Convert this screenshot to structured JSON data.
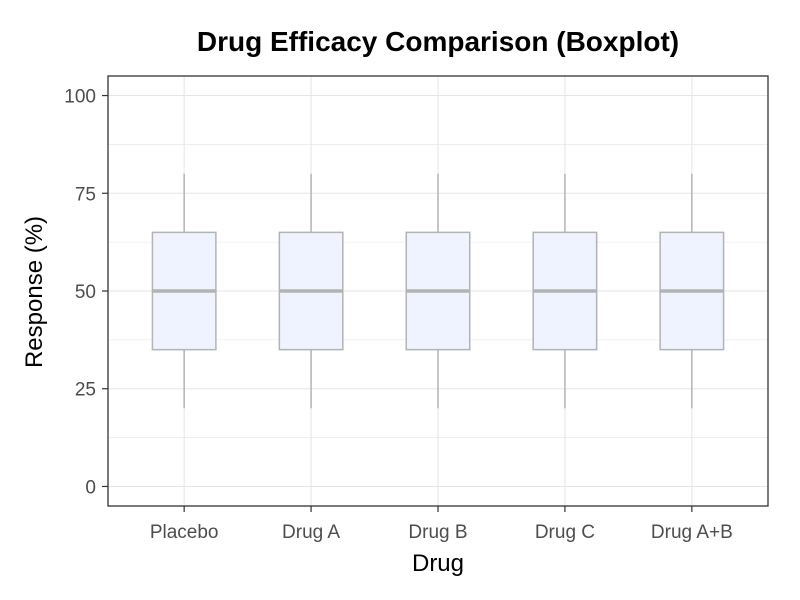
{
  "chart_data": {
    "type": "boxplot",
    "title": "Drug Efficacy Comparison (Boxplot)",
    "xlabel": "Drug",
    "ylabel": "Response (%)",
    "categories": [
      "Placebo",
      "Drug A",
      "Drug B",
      "Drug C",
      "Drug A+B"
    ],
    "boxes": [
      {
        "category": "Placebo",
        "min": 20,
        "q1": 35,
        "median": 50,
        "q3": 65,
        "max": 80
      },
      {
        "category": "Drug A",
        "min": 20,
        "q1": 35,
        "median": 50,
        "q3": 65,
        "max": 80
      },
      {
        "category": "Drug B",
        "min": 20,
        "q1": 35,
        "median": 50,
        "q3": 65,
        "max": 80
      },
      {
        "category": "Drug C",
        "min": 20,
        "q1": 35,
        "median": 50,
        "q3": 65,
        "max": 80
      },
      {
        "category": "Drug A+B",
        "min": 20,
        "q1": 35,
        "median": 50,
        "q3": 65,
        "max": 80
      }
    ],
    "ylim": [
      -5,
      105
    ],
    "yticks": [
      "0",
      "25",
      "50",
      "75",
      "100"
    ],
    "grid": true,
    "legend": "none",
    "colors": {
      "box_fill": "#eef3ff",
      "box_stroke": "#b3b3b3",
      "median": "#b3b3b3",
      "whisker": "#b3b3b3",
      "grid": "#e5e5e5",
      "panel_border": "#333333",
      "tick_label": "#4d4d4d"
    }
  }
}
